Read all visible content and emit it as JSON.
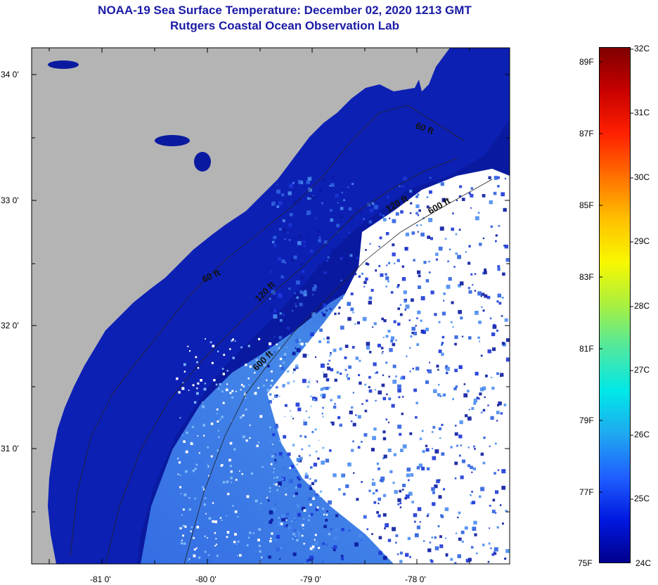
{
  "header": {
    "title": "NOAA-19 Sea Surface Temperature:  December 02, 2020 1213 GMT",
    "subtitle": "Rutgers Coastal Ocean Observation Lab"
  },
  "axes": {
    "latitude_labels": [
      {
        "lat": 34,
        "label": "34 0'"
      },
      {
        "lat": 33,
        "label": "33 0'"
      },
      {
        "lat": 32,
        "label": "32 0'"
      },
      {
        "lat": 31,
        "label": "31 0'"
      }
    ],
    "longitude_labels": [
      {
        "lon": -81,
        "label": "-81 0'"
      },
      {
        "lon": -80,
        "label": "-80 0'"
      },
      {
        "lon": -79,
        "label": "-79 0'"
      },
      {
        "lon": -78,
        "label": "-78 0'"
      }
    ]
  },
  "contours": [
    {
      "label": "60 ft"
    },
    {
      "label": "60 ft"
    },
    {
      "label": "120 ft"
    },
    {
      "label": "120 ft"
    },
    {
      "label": "600 ft"
    },
    {
      "label": "600 ft"
    }
  ],
  "colorbar": {
    "celsius": [
      "32C",
      "31C",
      "30C",
      "29C",
      "28C",
      "27C",
      "26C",
      "25C",
      "24C"
    ],
    "fahrenheit": [
      "89F",
      "87F",
      "85F",
      "83F",
      "81F",
      "79F",
      "77F",
      "75F"
    ],
    "stops": [
      "#7f0000",
      "#c80000",
      "#ff2000",
      "#ff7000",
      "#ffc000",
      "#f8f800",
      "#a8f040",
      "#50e8a0",
      "#00e8e8",
      "#20a8f0",
      "#2060ff",
      "#0018e0",
      "#00008c"
    ]
  },
  "colors": {
    "land": "#b4b4b4",
    "deep_blue": "#0a1aa0",
    "mid_blue": "#1b36d8",
    "light_blue": "#4a8cf0",
    "cloud": "#ffffff",
    "title": "#1a1aa6"
  }
}
